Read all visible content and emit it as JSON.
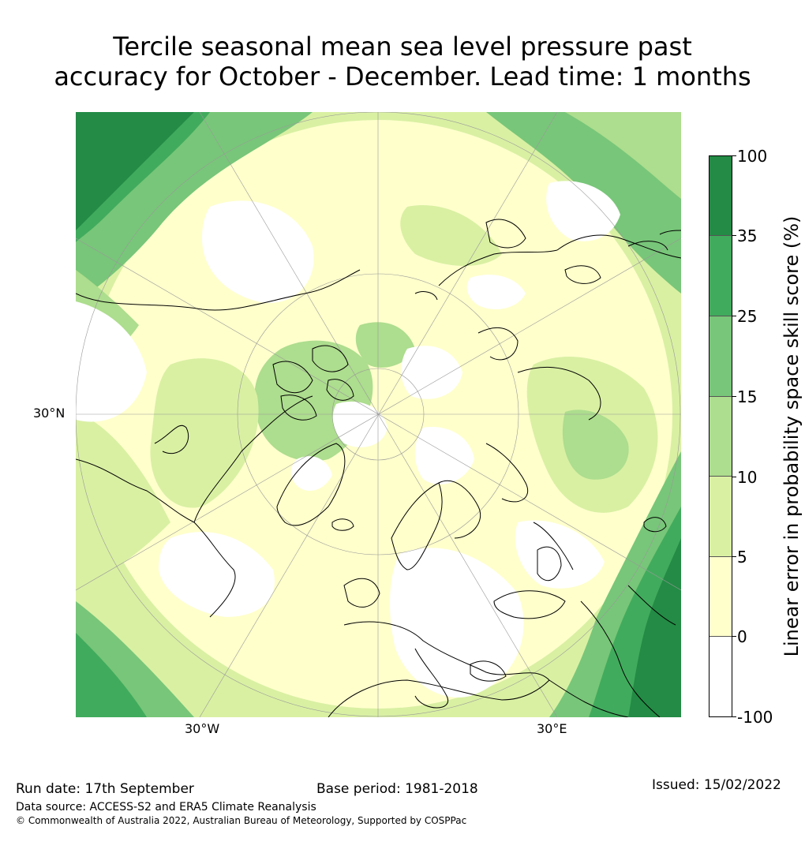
{
  "title": {
    "line1": "Tercile seasonal mean sea level pressure past",
    "line2": "accuracy for October - December. Lead time: 1 months"
  },
  "map": {
    "lat_label": "30°N",
    "lon_label_left": "30°W",
    "lon_label_right": "30°E",
    "projection": "north-polar-stereographic"
  },
  "colorbar": {
    "label": "Linear error in probability space skill score (%)",
    "ticks": [
      "100",
      "35",
      "25",
      "15",
      "10",
      "5",
      "0",
      "-100"
    ],
    "bins": [
      {
        "range": "35-100",
        "color": "#238b45"
      },
      {
        "range": "25-35",
        "color": "#41ab5d"
      },
      {
        "range": "15-25",
        "color": "#78c679"
      },
      {
        "range": "10-15",
        "color": "#addd8e"
      },
      {
        "range": "5-10",
        "color": "#d9f0a3"
      },
      {
        "range": "0-5",
        "color": "#ffffcc"
      },
      {
        "range": "-100-0",
        "color": "#ffffff"
      }
    ]
  },
  "footer": {
    "run_date": "Run date: 17th September",
    "base_period": "Base period: 1981-2018",
    "issued": "Issued: 15/02/2022",
    "data_source": "Data source: ACCESS-S2 and ERA5 Climate Reanalysis",
    "copyright": "© Commonwealth of Australia 2022, Australian Bureau of Meteorology, Supported by COSPPac"
  }
}
